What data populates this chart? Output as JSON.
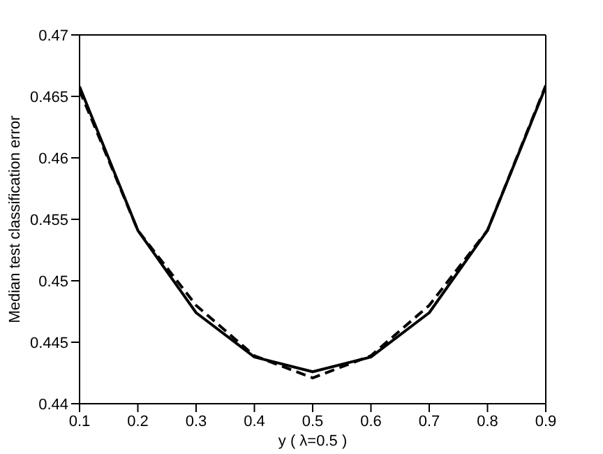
{
  "chart_data": {
    "type": "line",
    "xlabel": "y ( λ=0.5 )",
    "ylabel": "Median test classification error",
    "x": [
      0.1,
      0.2,
      0.3,
      0.4,
      0.5,
      0.6,
      0.7,
      0.8,
      0.9
    ],
    "xlim": [
      0.1,
      0.9
    ],
    "xticks": [
      0.1,
      0.2,
      0.3,
      0.4,
      0.5,
      0.6,
      0.7,
      0.8,
      0.9
    ],
    "ylim": [
      0.44,
      0.47
    ],
    "yticks": [
      0.44,
      0.445,
      0.45,
      0.455,
      0.46,
      0.465,
      0.47
    ],
    "grid": false,
    "marker": "none",
    "series": [
      {
        "color": "#000000",
        "line_style": "solid",
        "values": [
          0.4658,
          0.4541,
          0.4474,
          0.4438,
          0.4426,
          0.4438,
          0.4474,
          0.4541,
          0.4658
        ]
      },
      {
        "color": "#000000",
        "line_style": "dashed",
        "values": [
          0.4655,
          0.4541,
          0.448,
          0.4439,
          0.4421,
          0.4439,
          0.448,
          0.4541,
          0.4659
        ]
      }
    ]
  }
}
